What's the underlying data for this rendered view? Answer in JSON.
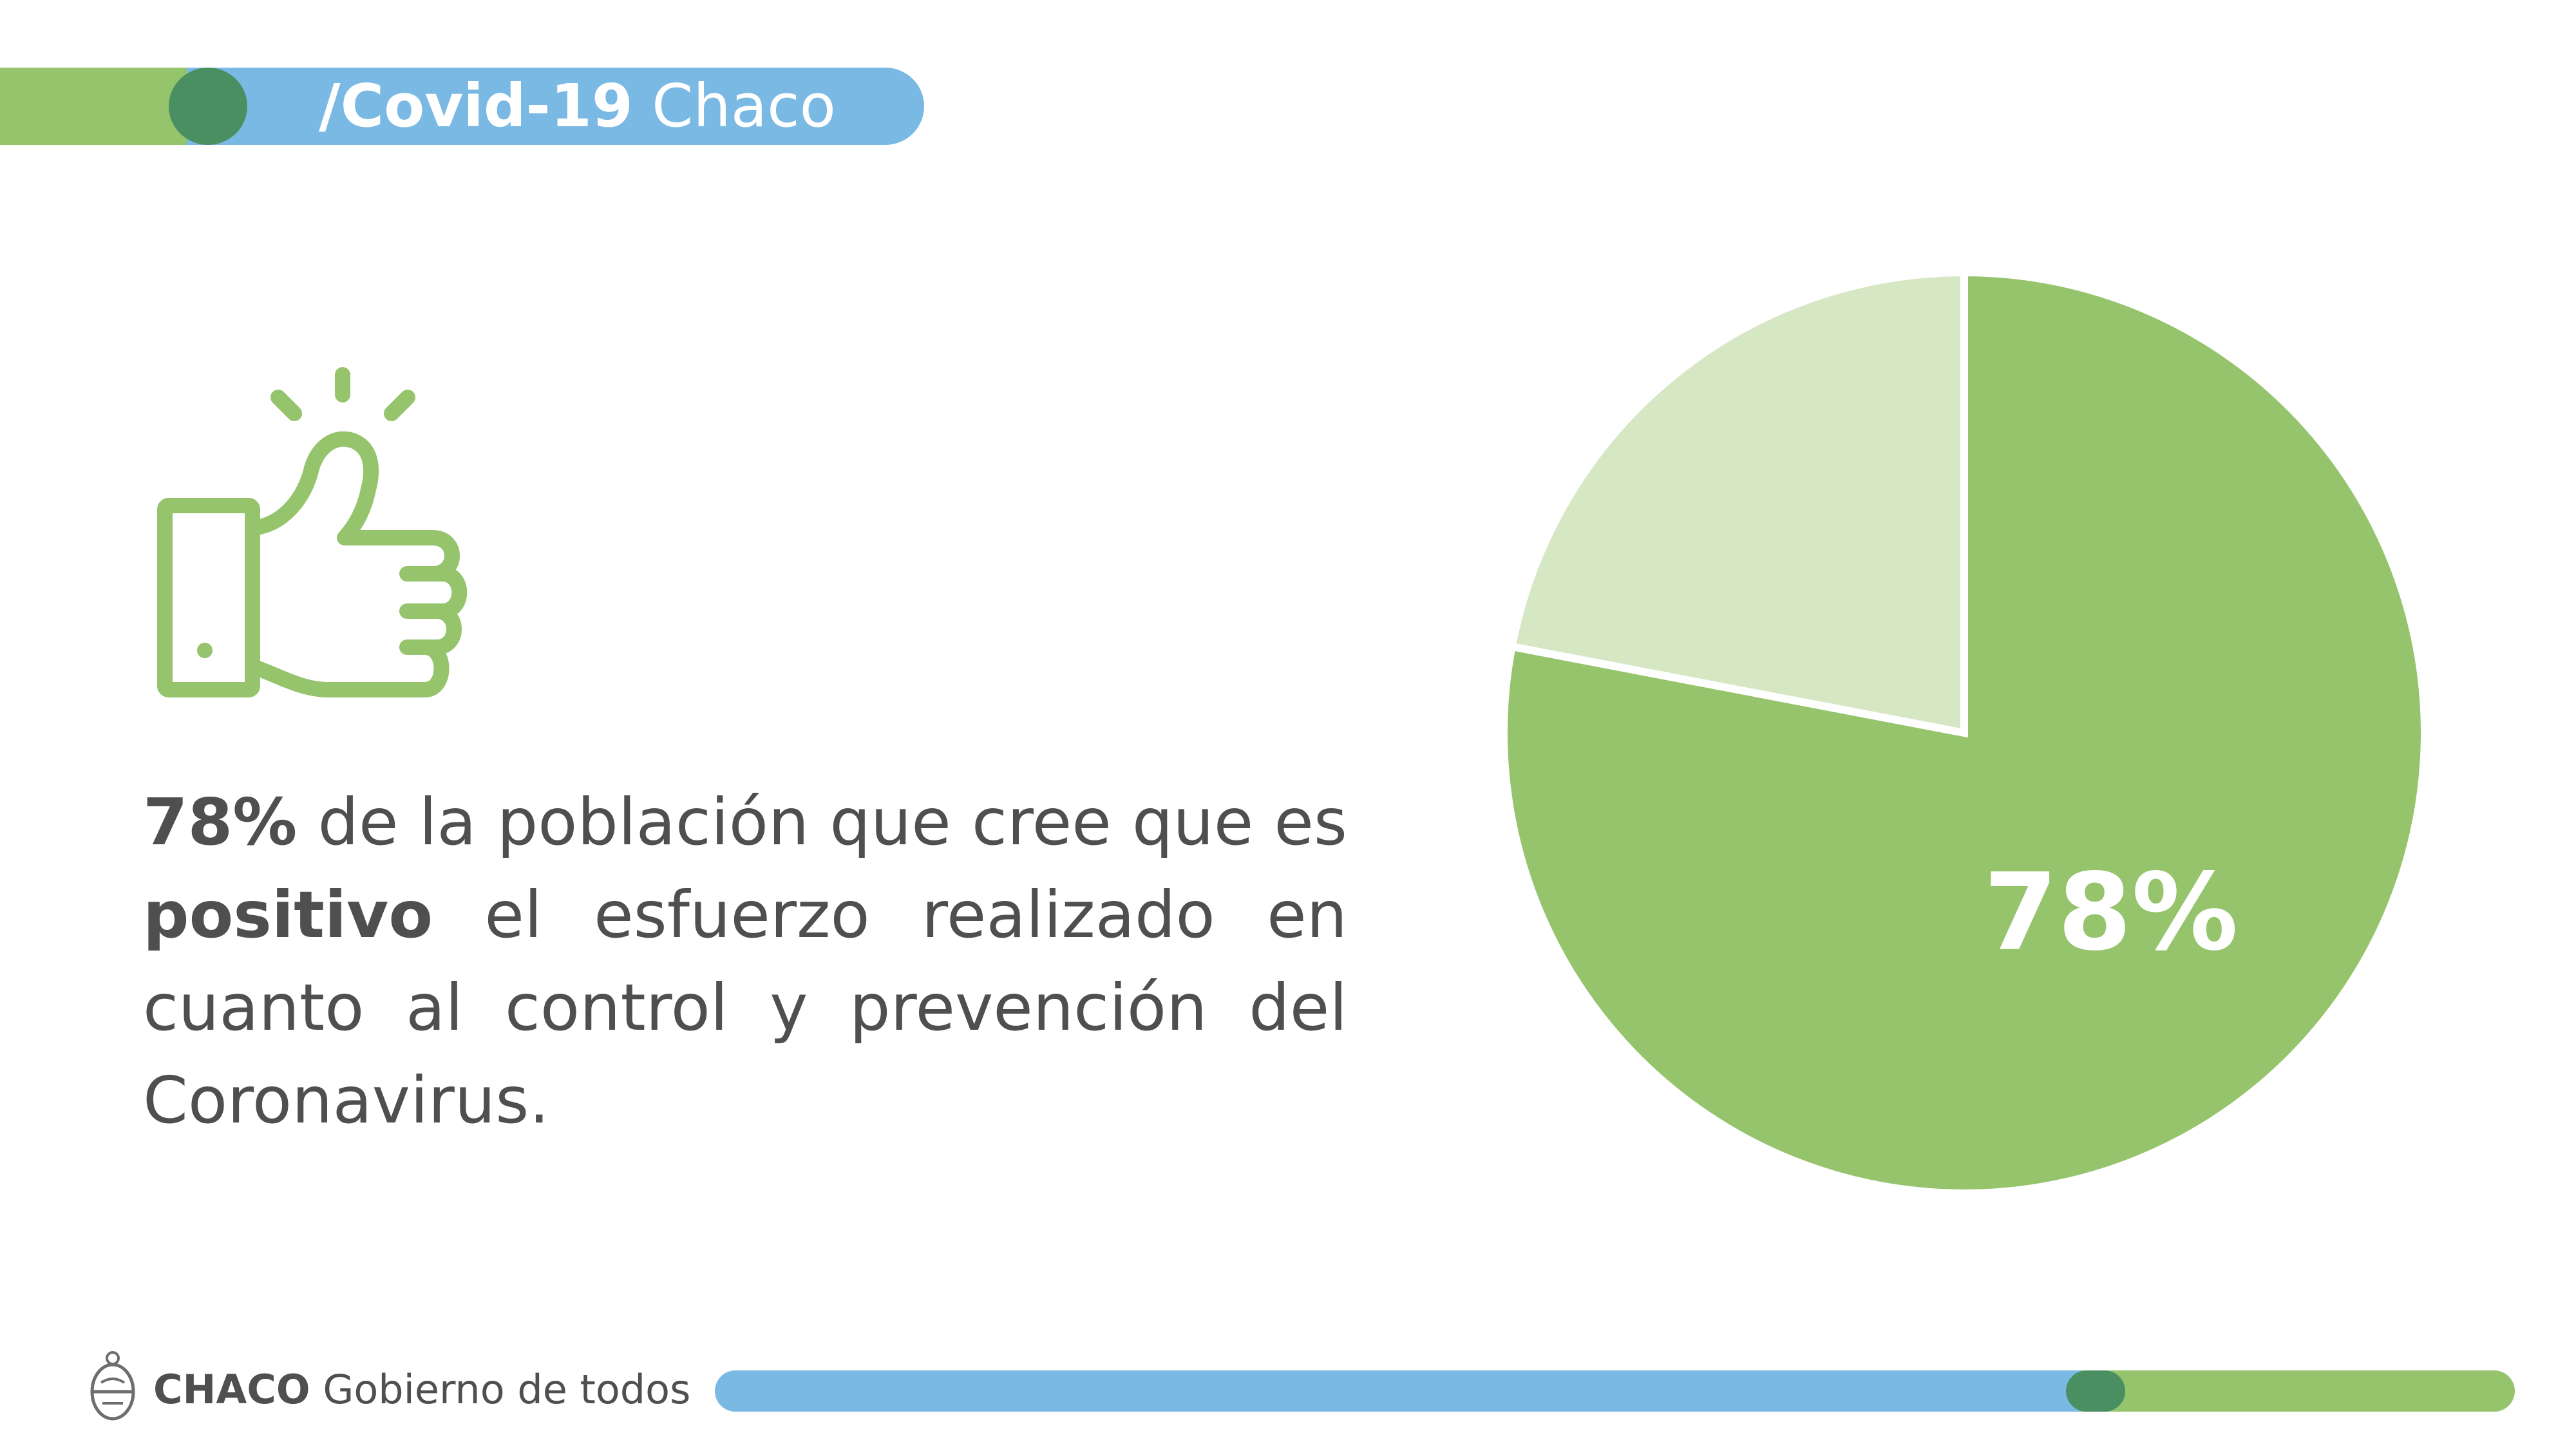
{
  "header": {
    "title_bold": "/Covid-19",
    "title_regular": "Chaco"
  },
  "icon": {
    "name": "thumbs-up-icon"
  },
  "statement": {
    "highlight_percent": "78%",
    "part1": " de la población que cree que es ",
    "highlight_word": "positivo",
    "part2": " el esfuerzo realizado en cuanto al control y prevención del Coronavirus."
  },
  "footer": {
    "brand": "CHACO",
    "tagline": "Gobierno de todos"
  },
  "colors": {
    "primary_green": "#95c46d",
    "light_green": "#d6e7c4",
    "dark_green": "#4a8f62",
    "blue": "#7ab9e4",
    "text_gray": "#4f4f50"
  },
  "chart_data": {
    "type": "pie",
    "slices": [
      {
        "value": 78,
        "color": "#95c46d",
        "label": "78%"
      },
      {
        "value": 22,
        "color": "#d6e7c4",
        "label": ""
      }
    ]
  }
}
